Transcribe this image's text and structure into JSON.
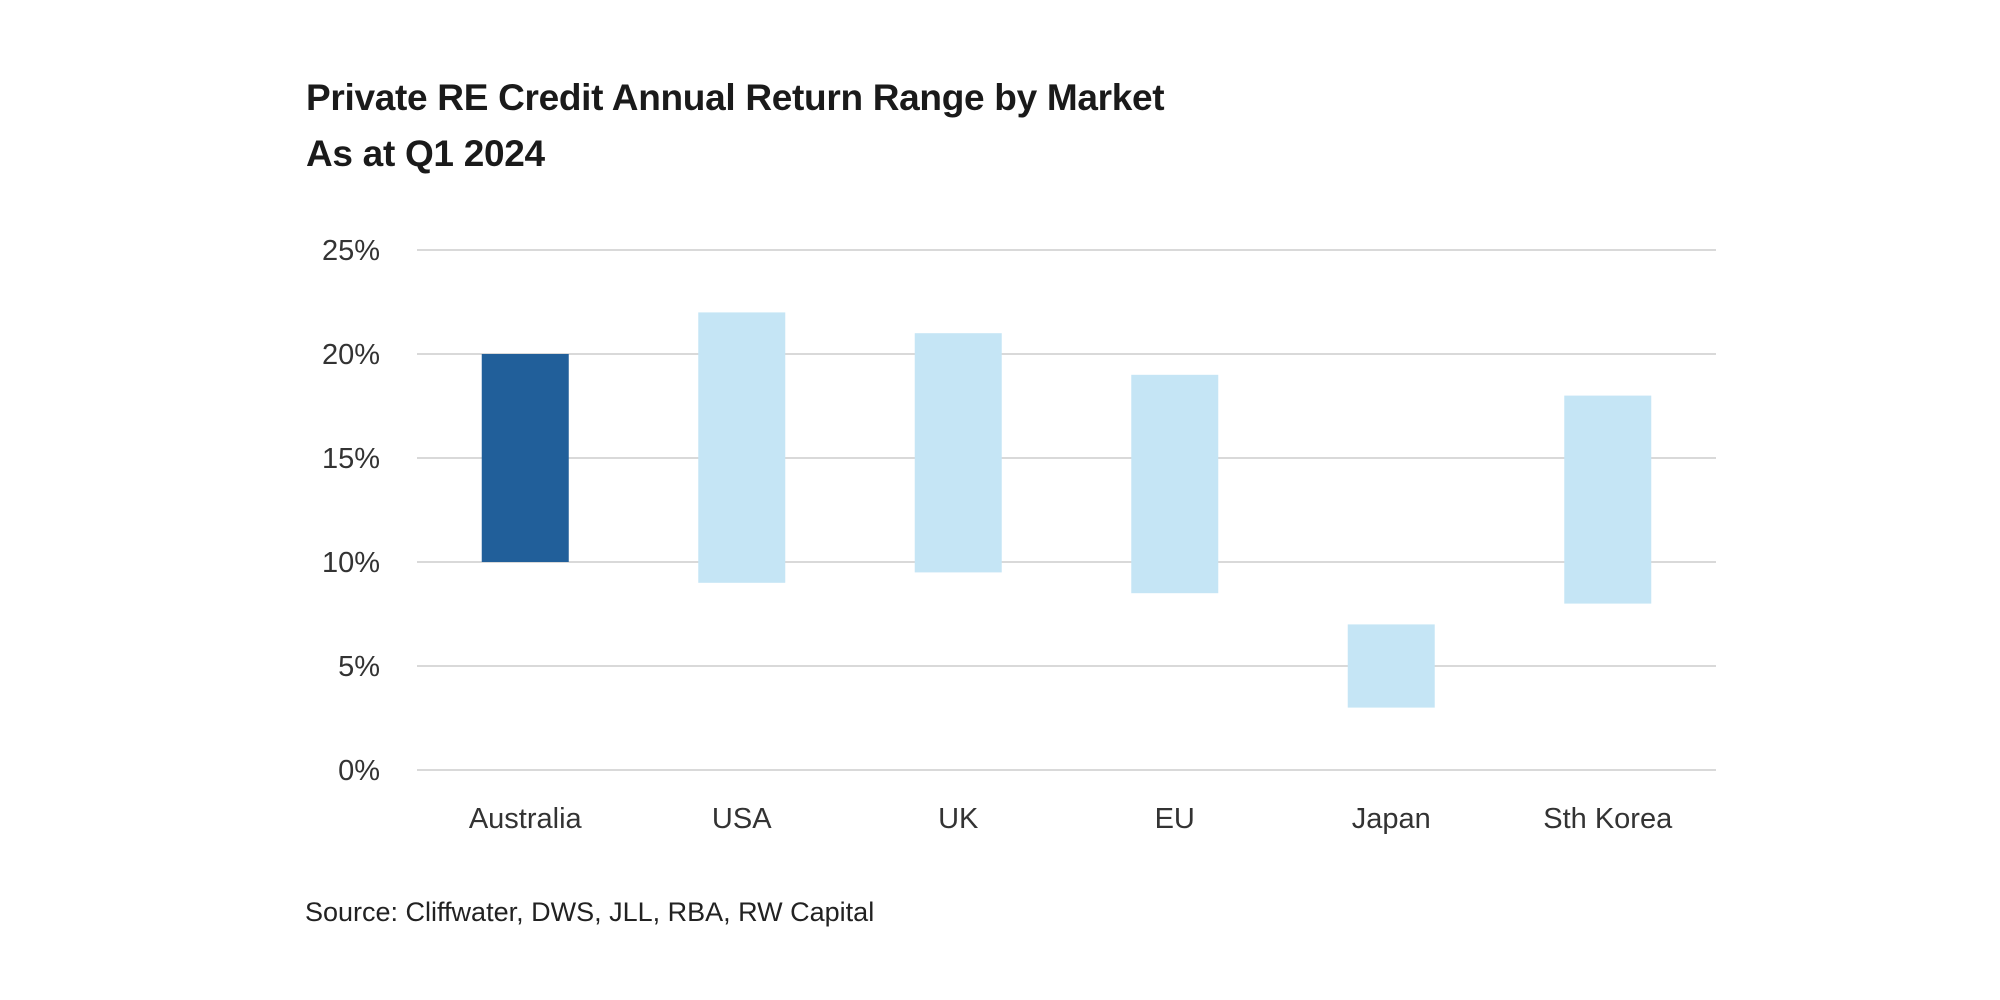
{
  "chart_data": {
    "type": "bar",
    "subtype": "floating-range",
    "title": "Private RE Credit Annual Return Range by Market",
    "subtitle": "As at Q1 2024",
    "xlabel": "",
    "ylabel": "",
    "categories": [
      "Australia",
      "USA",
      "UK",
      "EU",
      "Japan",
      "Sth Korea"
    ],
    "series": [
      {
        "name": "Annual return range",
        "low": [
          10,
          9,
          9.5,
          8.5,
          3,
          8
        ],
        "high": [
          20,
          22,
          21,
          19,
          7,
          18
        ]
      }
    ],
    "ylim": [
      0,
      25
    ],
    "yticks": [
      0,
      5,
      10,
      15,
      20,
      25
    ],
    "ytick_labels": [
      "0%",
      "5%",
      "10%",
      "15%",
      "20%",
      "25%"
    ],
    "grid": true,
    "legend": "none",
    "colors": {
      "highlight": "#215F9A",
      "default": "#C5E5F5",
      "grid": "#D9D9D9"
    },
    "highlight_index": 0
  },
  "source": "Source: Cliffwater, DWS, JLL, RBA, RW Capital"
}
